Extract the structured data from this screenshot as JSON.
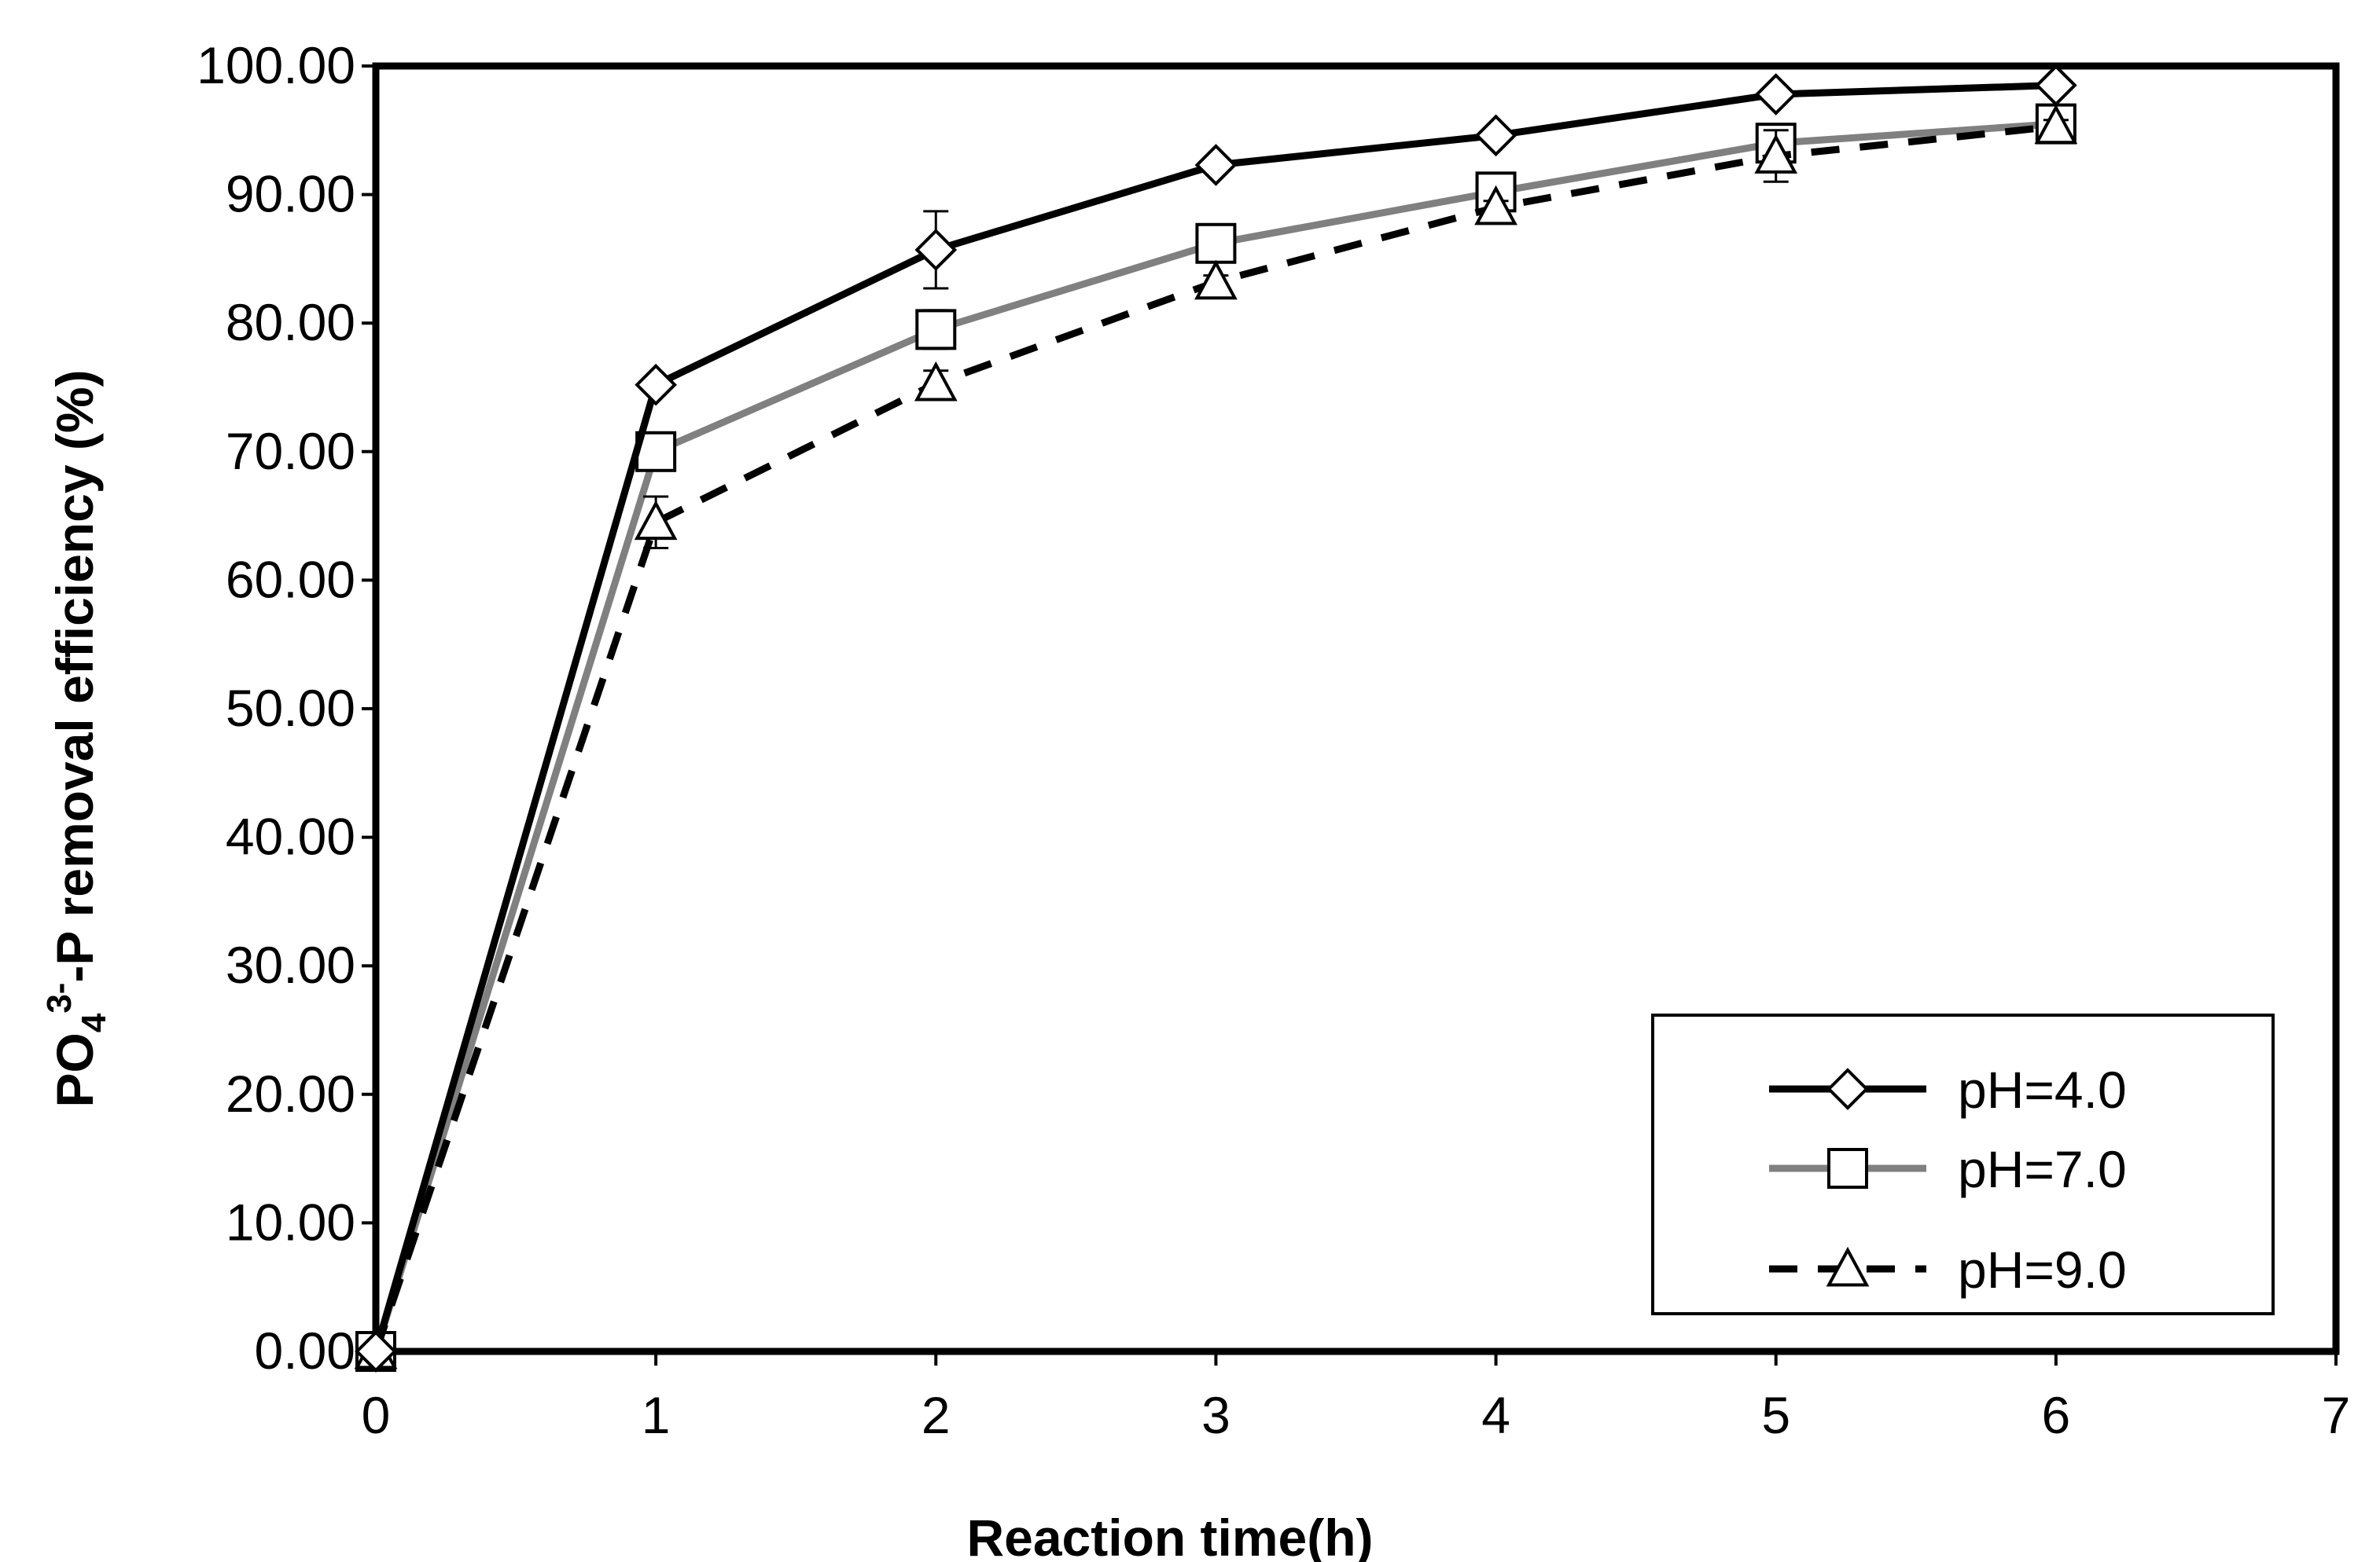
{
  "chart_data": {
    "type": "line",
    "title": "",
    "xlabel": "Reaction time(h)",
    "ylabel": {
      "prefix": "PO",
      "subscript": "4",
      "superscript": "3-",
      "suffix": "-P removal efficiency (%)"
    },
    "xlim": [
      0,
      7
    ],
    "ylim": [
      0,
      100
    ],
    "x_ticks": [
      0,
      1,
      2,
      3,
      4,
      5,
      6,
      7
    ],
    "x_tick_labels": [
      "0",
      "1",
      "2",
      "3",
      "4",
      "5",
      "6",
      "7"
    ],
    "y_ticks": [
      0,
      10,
      20,
      30,
      40,
      50,
      60,
      70,
      80,
      90,
      100
    ],
    "y_tick_labels": [
      "0.00",
      "10.00",
      "20.00",
      "30.00",
      "40.00",
      "50.00",
      "60.00",
      "70.00",
      "80.00",
      "90.00",
      "100.00"
    ],
    "grid": false,
    "legend_position": "bottom-right",
    "x": [
      0,
      1,
      2,
      3,
      4,
      5,
      6
    ],
    "series": [
      {
        "name": "pH=4.0",
        "values": [
          0,
          75.2,
          85.7,
          92.3,
          94.6,
          97.8,
          98.5
        ],
        "errors": [
          0,
          0.5,
          3.0,
          0.5,
          0.5,
          0.5,
          0.5
        ],
        "color": "#000000",
        "marker": "diamond",
        "dash": "solid"
      },
      {
        "name": "pH=7.0",
        "values": [
          0,
          70.0,
          79.5,
          86.2,
          90.2,
          94.0,
          95.5
        ],
        "errors": [
          0,
          1.0,
          1.5,
          1.0,
          0.5,
          1.0,
          0.5
        ],
        "color": "#808080",
        "marker": "square",
        "dash": "solid"
      },
      {
        "name": "pH=9.0",
        "values": [
          0,
          64.5,
          75.3,
          83.2,
          89.0,
          93.0,
          95.3
        ],
        "errors": [
          0,
          2.0,
          1.0,
          0.5,
          0.5,
          2.0,
          0.5
        ],
        "color": "#000000",
        "marker": "triangle",
        "dash": "dashed"
      }
    ]
  }
}
